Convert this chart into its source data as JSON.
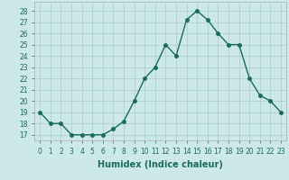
{
  "x": [
    0,
    1,
    2,
    3,
    4,
    5,
    6,
    7,
    8,
    9,
    10,
    11,
    12,
    13,
    14,
    15,
    16,
    17,
    18,
    19,
    20,
    21,
    22,
    23
  ],
  "y": [
    19,
    18,
    18,
    17,
    17,
    17,
    17,
    17.5,
    18.2,
    20,
    22,
    23,
    25,
    24,
    27.2,
    28,
    27.2,
    26,
    25,
    25,
    22,
    20.5,
    20,
    19
  ],
  "line_color": "#1a6b5a",
  "marker": "o",
  "markersize": 2.5,
  "linewidth": 1.0,
  "xlabel": "Humidex (Indice chaleur)",
  "xlim": [
    -0.5,
    23.5
  ],
  "ylim": [
    16.5,
    28.8
  ],
  "yticks": [
    17,
    18,
    19,
    20,
    21,
    22,
    23,
    24,
    25,
    26,
    27,
    28
  ],
  "xticks": [
    0,
    1,
    2,
    3,
    4,
    5,
    6,
    7,
    8,
    9,
    10,
    11,
    12,
    13,
    14,
    15,
    16,
    17,
    18,
    19,
    20,
    21,
    22,
    23
  ],
  "bg_color": "#cce8e8",
  "grid_color": "#aacccc",
  "axis_fontsize": 7,
  "tick_fontsize": 5.5
}
